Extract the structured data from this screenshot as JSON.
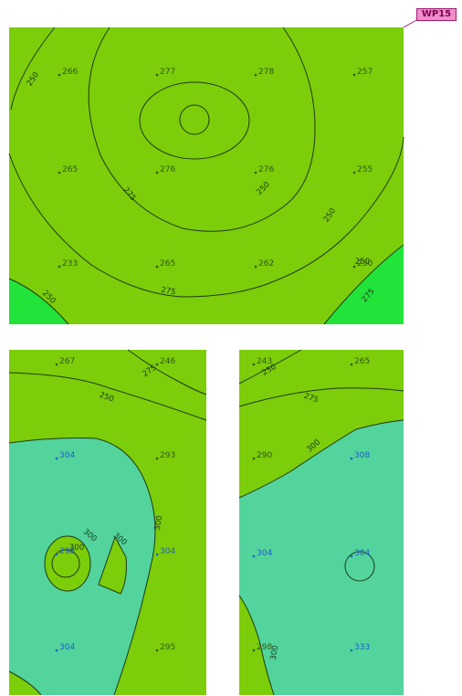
{
  "plan": {
    "area_tag": "WP15",
    "colors": {
      "light_green": "#7ccd0a",
      "bright_green": "#22e33a",
      "teal": "#52d49c",
      "contour": "#1f3a12",
      "point_dark": "#2f5a14",
      "point_blue": "#1c5fc0",
      "tag_fill": "#f08ec9",
      "tag_border": "#a01a72"
    },
    "panels": [
      {
        "id": "top",
        "points": [
          "266",
          "277",
          "278",
          "257",
          "265",
          "276",
          "276",
          "255",
          "233",
          "265",
          "262",
          "230"
        ],
        "contour_labels": [
          "250",
          "275",
          "275",
          "250",
          "250",
          "250",
          "250",
          "275"
        ]
      },
      {
        "id": "bottom-left",
        "points": [
          "267",
          "246",
          "304",
          "293",
          "298",
          "304",
          "304",
          "295"
        ],
        "contour_labels": [
          "275",
          "250",
          "300",
          "300",
          "300",
          "300"
        ]
      },
      {
        "id": "bottom-right",
        "points": [
          "243",
          "265",
          "290",
          "308",
          "304",
          "304",
          "298",
          "333"
        ],
        "contour_labels": [
          "250",
          "275",
          "300",
          "300"
        ]
      }
    ]
  }
}
